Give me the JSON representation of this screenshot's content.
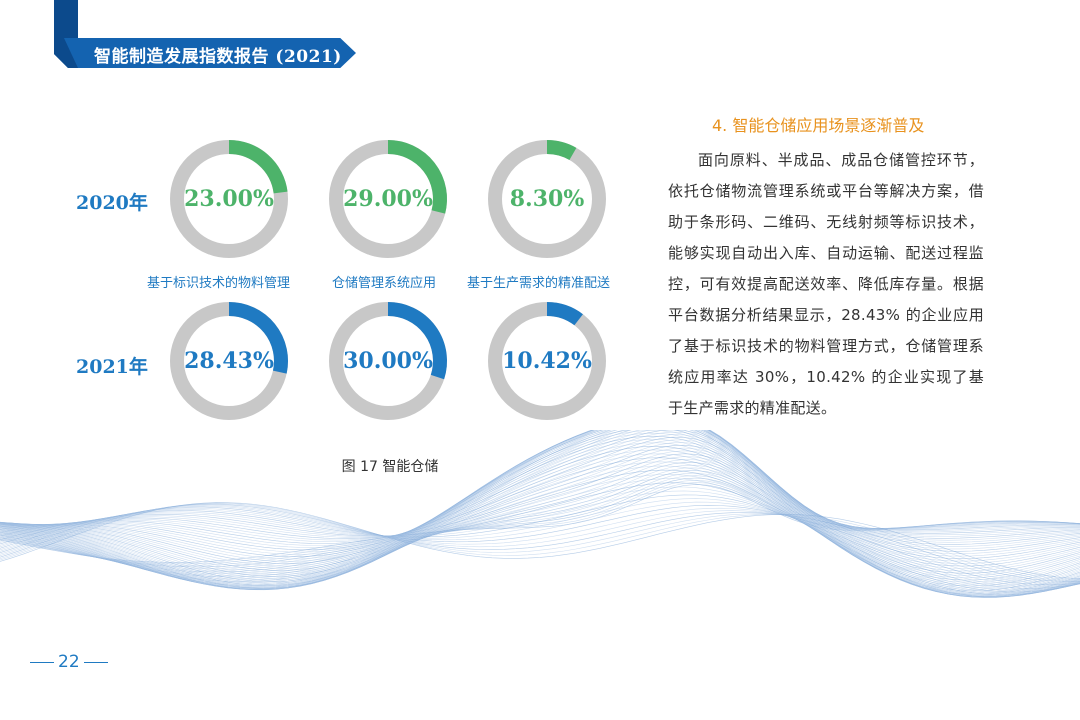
{
  "header": {
    "title": "智能制造发展指数报告 (2021)"
  },
  "chart_data": {
    "type": "pie",
    "rows": [
      "2020年",
      "2021年"
    ],
    "categories": [
      "基于标识技术的物料管理",
      "仓储管理系统应用",
      "基于生产需求的精准配送"
    ],
    "series": [
      {
        "name": "2020年",
        "values": [
          23.0,
          29.0,
          8.3
        ],
        "labels": [
          "23.00%",
          "29.00%",
          "8.30%"
        ],
        "color": "#4db36a"
      },
      {
        "name": "2021年",
        "values": [
          28.43,
          30.0,
          10.42
        ],
        "labels": [
          "28.43%",
          "30.00%",
          "10.42%"
        ],
        "color": "#1f7ac2"
      }
    ],
    "track_color": "#c8c8c8",
    "caption": "图 17  智能仓储"
  },
  "section": {
    "heading": "4. 智能仓储应用场景逐渐普及",
    "body": "面向原料、半成品、成品仓储管控环节，依托仓储物流管理系统或平台等解决方案，借助于条形码、二维码、无线射频等标识技术，能够实现自动出入库、自动运输、配送过程监控，可有效提高配送效率、降低库存量。根据平台数据分析结果显示，28.43% 的企业应用了基于标识技术的物料管理方式，仓储管理系统应用率达 30%，10.42% 的企业实现了基于生产需求的精准配送。"
  },
  "footer": {
    "page_number": "22"
  }
}
